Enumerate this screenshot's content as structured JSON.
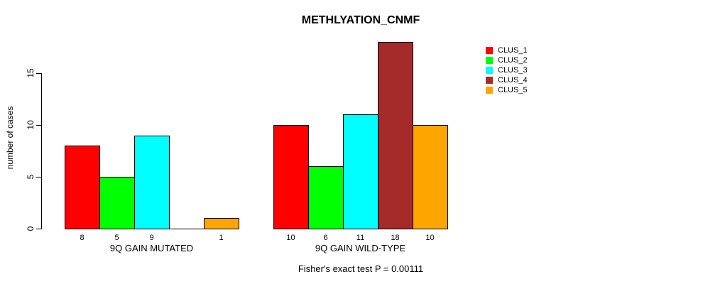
{
  "chart_data": {
    "type": "bar",
    "title": "METHLYATION_CNMF",
    "ylabel": "number of cases",
    "xlabel": "",
    "ylim": [
      0,
      18
    ],
    "yticks": [
      0,
      5,
      10,
      15
    ],
    "grid": false,
    "legend_position": "right",
    "categories": [
      "9Q GAIN MUTATED",
      "9Q GAIN WILD-TYPE"
    ],
    "series": [
      {
        "name": "CLUS_1",
        "color": "#FF0000",
        "values": [
          8,
          10
        ]
      },
      {
        "name": "CLUS_2",
        "color": "#00FF00",
        "values": [
          5,
          6
        ]
      },
      {
        "name": "CLUS_3",
        "color": "#00FFFF",
        "values": [
          9,
          11
        ]
      },
      {
        "name": "CLUS_4",
        "color": "#A52A2A",
        "values": [
          0,
          18
        ]
      },
      {
        "name": "CLUS_5",
        "color": "#FFA500",
        "values": [
          1,
          10
        ]
      }
    ],
    "bar_value_labels": [
      [
        "8",
        "5",
        "9",
        "",
        "1"
      ],
      [
        "10",
        "6",
        "11",
        "18",
        "10"
      ]
    ],
    "annotation": "Fisher's exact test P = 0.00111",
    "background_color": "#ffffff",
    "axis_color": "#000000"
  }
}
